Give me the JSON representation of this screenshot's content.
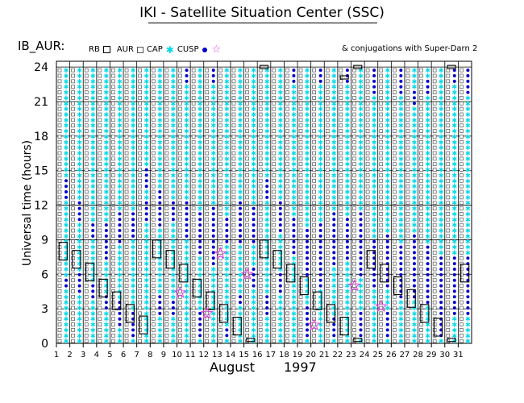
{
  "title": "IKI - Satellite Situation Center (SSC)",
  "panel_label": "IB_AUR:",
  "legend": [
    {
      "label": "RB",
      "symbol": "square-outline-large"
    },
    {
      "label": "AUR",
      "symbol": "square-outline-small"
    },
    {
      "label": "CAP",
      "symbol": "asterisk",
      "color": "#00d8e8"
    },
    {
      "label": "CUSP",
      "symbol": "dot",
      "color": "#0000cc"
    },
    {
      "label": "",
      "symbol": "star",
      "color": "#e040e0"
    }
  ],
  "note": "& conjugations with Super-Darn 2",
  "colors": {
    "aur": "#555555",
    "cap": "#00d8e8",
    "cusp": "#0000cc",
    "conjugation": "#e040e0"
  },
  "chart_data": {
    "type": "scatter",
    "title": "IKI - Satellite Situation Center (SSC)",
    "xlabel": "August",
    "xlabel_year": "1997",
    "ylabel": "Universal time (hours)",
    "xlim": [
      1,
      32
    ],
    "ylim": [
      0,
      24.5
    ],
    "x_ticks": [
      "1",
      "2",
      "3",
      "4",
      "5",
      "6",
      "7",
      "8",
      "9",
      "10",
      "11",
      "12",
      "13",
      "14",
      "15",
      "16",
      "17",
      "18",
      "19",
      "20",
      "21",
      "22",
      "23",
      "24",
      "25",
      "26",
      "27",
      "28",
      "29",
      "30",
      "31"
    ],
    "y_ticks": [
      0,
      3,
      6,
      9,
      12,
      15,
      18,
      21,
      24
    ],
    "grid": true,
    "series": [
      {
        "name": "RB",
        "symbol": "square-outline-large",
        "x": [
          1.5,
          2.5,
          3.5,
          4.5,
          5.5,
          6.5,
          7.5,
          8.5,
          9.5,
          10.5,
          11.5,
          12.5,
          13.5,
          14.5,
          15.5,
          16.5,
          17.5,
          18.5,
          19.5,
          20.5,
          21.5,
          22.5,
          23.5,
          24.5,
          25.5,
          26.5,
          27.5,
          28.5,
          29.5,
          30.5,
          31.5,
          16.5,
          23.5,
          30.5,
          22.5
        ],
        "y": [
          8.0,
          7.3,
          6.2,
          4.8,
          3.7,
          2.6,
          1.6,
          8.2,
          7.3,
          6.1,
          4.8,
          3.7,
          2.6,
          1.5,
          0.3,
          8.2,
          7.3,
          6.1,
          5.0,
          3.7,
          2.6,
          1.5,
          0.3,
          7.3,
          6.1,
          5.0,
          3.9,
          2.6,
          1.4,
          0.3,
          6.1,
          24.0,
          24.0,
          24.0,
          23.1
        ]
      },
      {
        "name": "CUSP",
        "symbol": "dot",
        "x_days": [
          1,
          2,
          3,
          4,
          5,
          6,
          7,
          8,
          9,
          10,
          11,
          12,
          13,
          14,
          15,
          16,
          17,
          18,
          19,
          20,
          21,
          22,
          23,
          24,
          25,
          26,
          27,
          28,
          29,
          30,
          31
        ],
        "y_ranges": [
          [
            [
              12.6,
              14.5
            ],
            [
              4.6,
              5.6
            ]
          ],
          [
            [
              10.6,
              12.4
            ],
            [
              4.4,
              6.4
            ]
          ],
          [
            [
              9.0,
              10.5
            ],
            [
              3.9,
              5.4
            ]
          ],
          [
            [
              7.2,
              10.5
            ],
            [
              2.7,
              4.2
            ]
          ],
          [
            [
              8.6,
              11.4
            ],
            [
              1.4,
              3.6
            ]
          ],
          [
            [
              9.0,
              11.5
            ],
            [
              0.4,
              2.6
            ]
          ],
          [
            [
              10.6,
              12.4
            ],
            [
              13.6,
              15.2
            ]
          ],
          [
            [
              10.0,
              13.4
            ],
            [
              2.4,
              4.4
            ]
          ],
          [
            [
              10.6,
              12.4
            ],
            [
              2.4,
              4.0
            ]
          ],
          [
            [
              9.0,
              12.4
            ],
            [
              22.6,
              24.0
            ]
          ],
          [
            [
              7.6,
              11.6
            ],
            [
              0.4,
              3.0
            ]
          ],
          [
            [
              6.6,
              12.0
            ],
            [
              22.6,
              24.0
            ]
          ],
          [
            [
              8.6,
              11.0
            ],
            [
              0.4,
              1.6
            ]
          ],
          [
            [
              8.6,
              12.6
            ],
            [
              3.2,
              4.4
            ]
          ],
          [
            [
              8.6,
              11.8
            ],
            [
              4.6,
              6.6
            ]
          ],
          [
            [
              12.6,
              14.6
            ],
            [
              2.4,
              4.2
            ]
          ],
          [
            [
              9.6,
              12.6
            ],
            [
              4.2,
              6.2
            ]
          ],
          [
            [
              7.6,
              11.0
            ],
            [
              22.4,
              24.0
            ]
          ],
          [
            [
              5.6,
              10.2
            ],
            [
              0.6,
              3.4
            ]
          ],
          [
            [
              4.6,
              10.4
            ],
            [
              22.4,
              24.0
            ]
          ],
          [
            [
              6.6,
              11.6
            ],
            [
              0.4,
              2.4
            ]
          ],
          [
            [
              7.0,
              11.0
            ],
            [
              22.6,
              24.0
            ]
          ],
          [
            [
              5.6,
              11.6
            ],
            [
              0.4,
              2.6
            ]
          ],
          [
            [
              5.0,
              9.2
            ],
            [
              21.6,
              24.0
            ]
          ],
          [
            [
              4.6,
              9.6
            ],
            [
              0.6,
              2.6
            ]
          ],
          [
            [
              3.6,
              8.4
            ],
            [
              21.6,
              24.0
            ]
          ],
          [
            [
              4.0,
              9.4
            ],
            [
              20.4,
              22.2
            ]
          ],
          [
            [
              3.2,
              8.6
            ],
            [
              21.6,
              23.0
            ]
          ],
          [
            [
              2.6,
              7.6
            ],
            [
              0.4,
              2.2
            ]
          ],
          [
            [
              2.4,
              7.6
            ],
            [
              22.4,
              24.0
            ]
          ],
          [
            [
              2.6,
              7.6
            ],
            [
              21.6,
              24.0
            ]
          ]
        ]
      },
      {
        "name": "conjugations with Super-Darn 2",
        "symbol": "star",
        "x": [
          10,
          12,
          13,
          15,
          20,
          23,
          25
        ],
        "y": [
          4.4,
          2.6,
          7.8,
          6.0,
          1.6,
          5.0,
          3.2
        ]
      }
    ]
  }
}
